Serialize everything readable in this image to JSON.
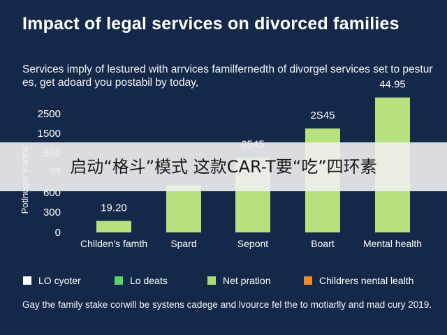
{
  "header": {
    "title": "Impact of legal services on divorced families",
    "subtitle": "Services imply of lestured with arrvices familfernedth of divorgel services set to pestur es, get adoard you postabil by today,"
  },
  "chart_data": {
    "type": "bar",
    "categories": [
      "Childen's famth",
      "Spard",
      "Sepont",
      "Boart",
      "Mental health"
    ],
    "values": [
      170,
      700,
      1110,
      1540,
      2000
    ],
    "data_labels": [
      "19.20",
      "",
      "6545",
      "2S45",
      "44.95"
    ],
    "ylabel": "Potlnuger Parths",
    "yticks": [
      "0",
      "300",
      "600",
      "??",
      "550",
      "1500",
      "2500"
    ],
    "ylim": [
      0,
      2100
    ],
    "colors": {
      "bar": "#b5e27e",
      "axis": "#ffffff"
    },
    "grid": false
  },
  "legend": [
    {
      "label": "LO cyoter",
      "color": "#ffffff"
    },
    {
      "label": "Lo deats",
      "color": "#5bd16a"
    },
    {
      "label": "Net pration",
      "color": "#a9dc7a"
    },
    {
      "label": "Childrers nental lealth",
      "color": "#f08a2a"
    }
  ],
  "overlay": {
    "text": "启动“格斗”模式 这款CAR-T要“吃”四环素"
  },
  "footnote": "Gay the family stake corwill be systens cadege and lvource fel the to motiarlly and mad cury 2019."
}
